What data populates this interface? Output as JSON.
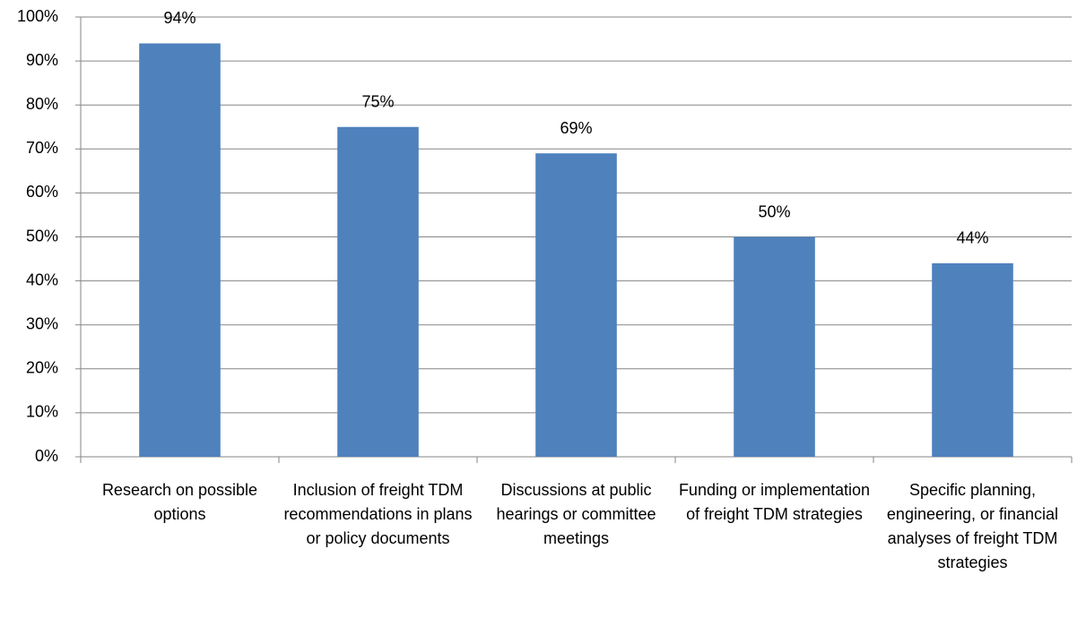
{
  "chart_data": {
    "type": "bar",
    "categories": [
      "Research on possible options",
      "Inclusion of freight TDM recommendations in plans or policy documents",
      "Discussions at public hearings or committee meetings",
      "Funding or implementation of freight TDM strategies",
      "Specific planning, engineering, or financial analyses of freight TDM strategies"
    ],
    "values": [
      94,
      75,
      69,
      50,
      44
    ],
    "value_labels": [
      "94%",
      "75%",
      "69%",
      "50%",
      "44%"
    ],
    "color": "#4f81bd",
    "ylim": [
      0,
      100
    ],
    "yticks": [
      {
        "value": 0,
        "label": "0%"
      },
      {
        "value": 10,
        "label": "10%"
      },
      {
        "value": 20,
        "label": "20%"
      },
      {
        "value": 30,
        "label": "30%"
      },
      {
        "value": 40,
        "label": "40%"
      },
      {
        "value": 50,
        "label": "50%"
      },
      {
        "value": 60,
        "label": "60%"
      },
      {
        "value": 70,
        "label": "70%"
      },
      {
        "value": 80,
        "label": "80%"
      },
      {
        "value": 90,
        "label": "90%"
      },
      {
        "value": 100,
        "label": "100%"
      }
    ],
    "grid": true
  }
}
